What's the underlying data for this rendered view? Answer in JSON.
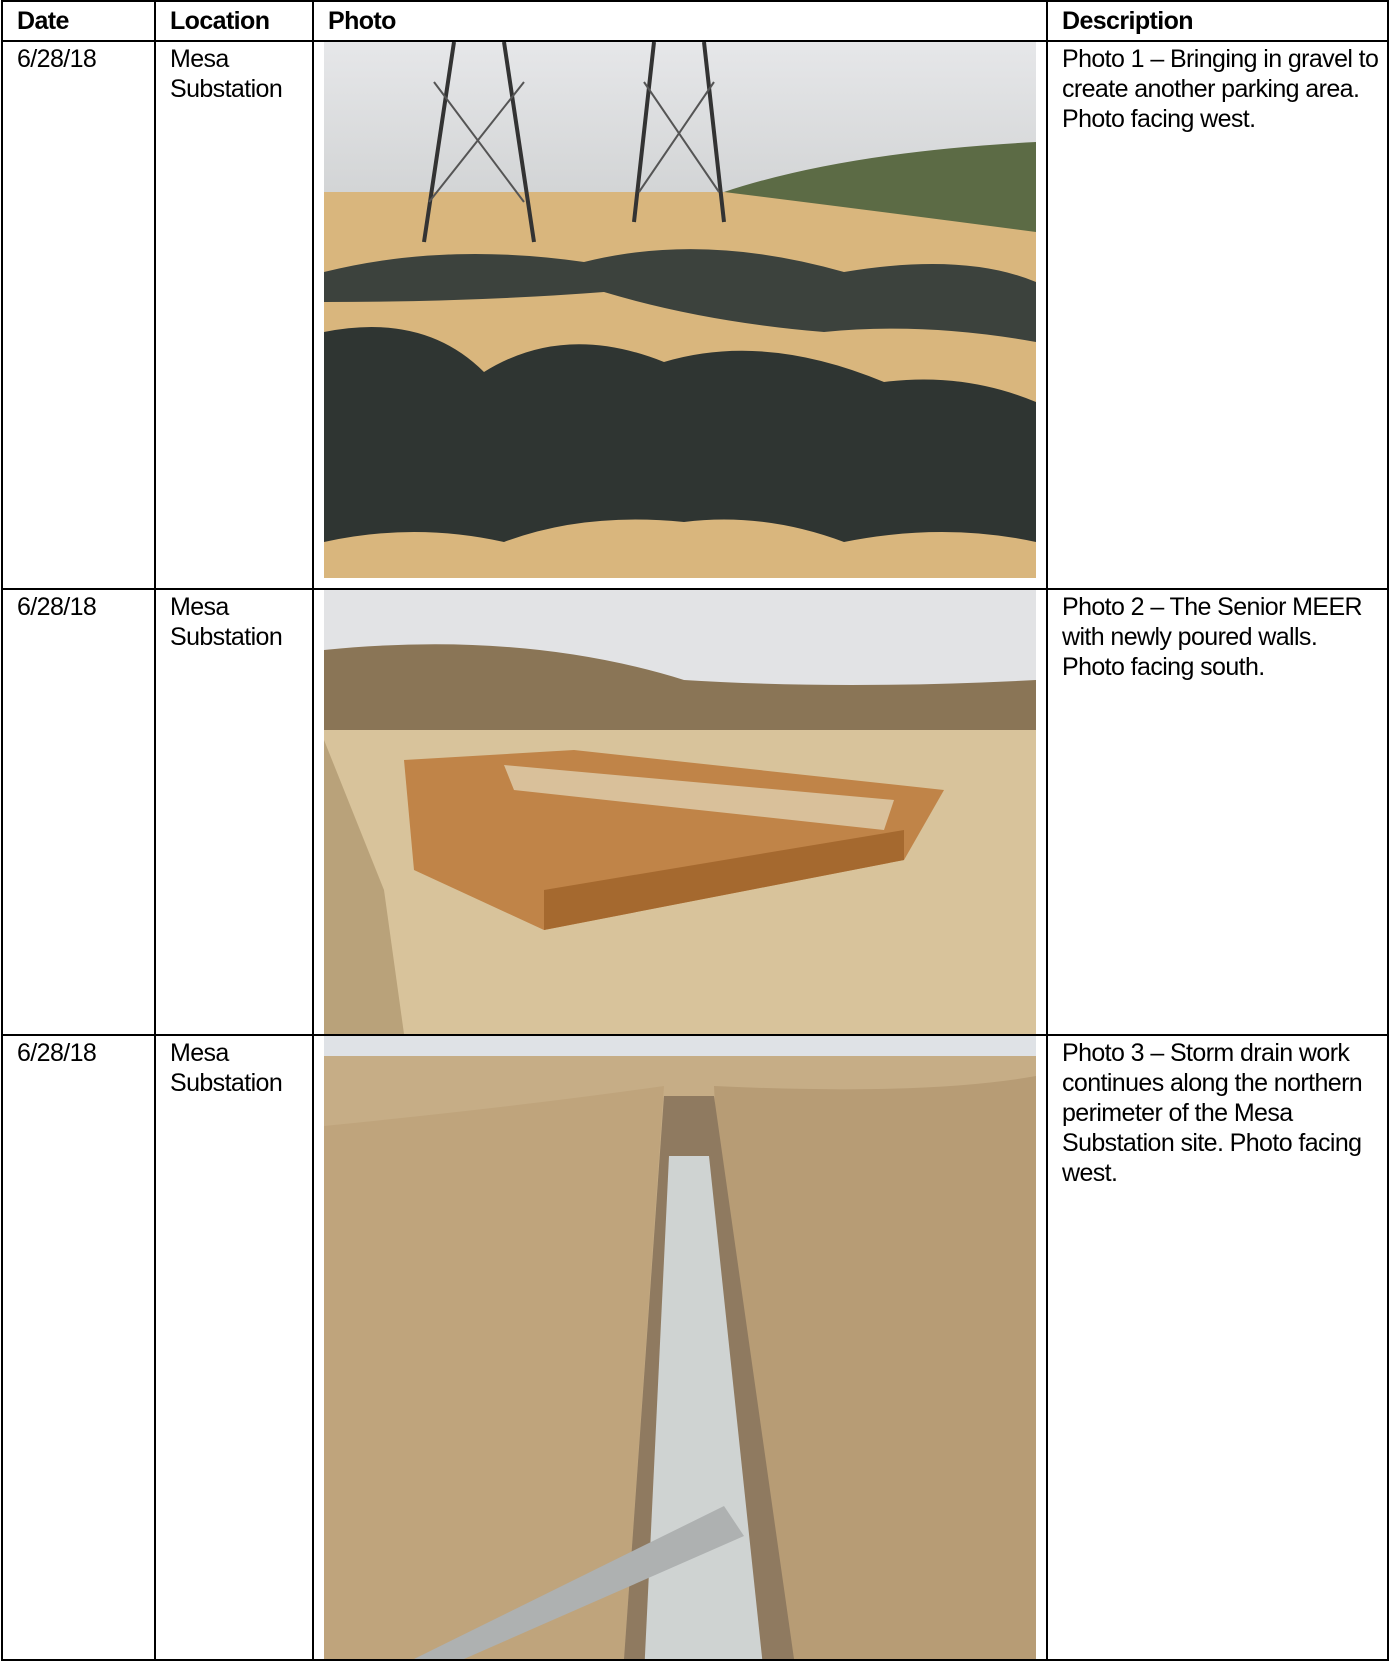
{
  "table": {
    "header": [
      "Date",
      "Location",
      "Photo",
      "Description"
    ],
    "rows": [
      {
        "date": "6/28/18",
        "location": "Mesa Substation",
        "description": "Photo 1 – Bringing in gravel to create another parking area. Photo facing west."
      },
      {
        "date": "6/28/18",
        "location": "Mesa Substation",
        "description": "Photo 2 – The Senior MEER with newly poured walls. Photo facing south."
      },
      {
        "date": "6/28/18",
        "location": "Mesa Substation",
        "description": "Photo 3 – Storm drain work continues along the northern perimeter of the Mesa Substation site. Photo facing west."
      }
    ]
  }
}
